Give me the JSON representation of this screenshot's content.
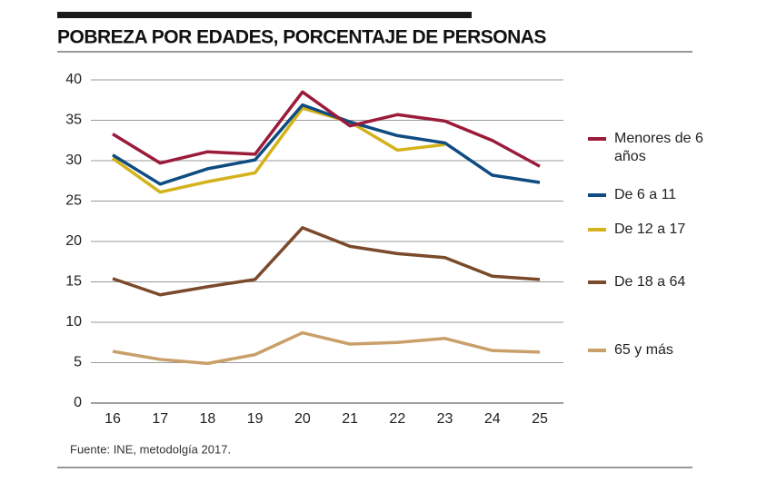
{
  "chart_data": {
    "type": "line",
    "title": "POBREZA POR EDADES, PORCENTAJE DE PERSONAS",
    "source": "Fuente: INE, metodolgía 2017.",
    "categories": [
      "16",
      "17",
      "18",
      "19",
      "20",
      "21",
      "22",
      "23",
      "24",
      "25"
    ],
    "ylim": [
      0,
      40
    ],
    "yticks": [
      0,
      5,
      10,
      15,
      20,
      25,
      30,
      35,
      40
    ],
    "grid": true,
    "series": [
      {
        "name": "Menores de 6 años",
        "color": "#9b1b3a",
        "values": [
          33.3,
          29.7,
          31.1,
          30.8,
          38.5,
          34.3,
          35.7,
          34.9,
          32.5,
          29.3
        ]
      },
      {
        "name": "De 6 a 11",
        "color": "#0f4c81",
        "values": [
          30.7,
          27.1,
          29.0,
          30.1,
          36.9,
          34.8,
          33.1,
          32.2,
          28.2,
          27.3
        ]
      },
      {
        "name": "De 12 a 17",
        "color": "#d4b21a",
        "values": [
          30.3,
          26.1,
          27.4,
          28.5,
          36.5,
          34.8,
          31.3,
          32.0,
          null,
          null
        ]
      },
      {
        "name": "De 18 a 64",
        "color": "#7b4a2b",
        "values": [
          15.4,
          13.4,
          14.4,
          15.3,
          21.7,
          19.4,
          18.5,
          18.0,
          15.7,
          15.3
        ]
      },
      {
        "name": "65 y más",
        "color": "#c9a06a",
        "values": [
          6.4,
          5.4,
          4.9,
          6.0,
          8.7,
          7.3,
          7.5,
          8.0,
          6.5,
          6.3
        ]
      }
    ]
  }
}
